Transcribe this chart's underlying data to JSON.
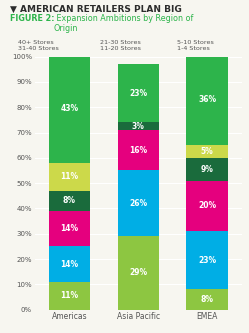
{
  "title": "▼ AMERICAN RETAILERS PLAN BIG",
  "subtitle_bold": "FIGURE 2:",
  "subtitle_rest": " Expansion Ambitions by Region of\nOrigin",
  "categories": [
    "Americas",
    "Asia Pacific",
    "EMEA"
  ],
  "legend_labels_row1": [
    "40+ Stores",
    "21-30 Stores",
    "5-10 Stores"
  ],
  "legend_labels_row2": [
    "31-40 Stores",
    "11-20 Stores",
    "1-4 Stores"
  ],
  "data": {
    "1-4 Stores": [
      11,
      29,
      8
    ],
    "5-10 Stores": [
      14,
      26,
      23
    ],
    "11-20 Stores": [
      14,
      16,
      20
    ],
    "21-30 Stores": [
      8,
      3,
      9
    ],
    "31-40 Stores": [
      11,
      0,
      5
    ],
    "40+ Stores": [
      43,
      23,
      36
    ]
  },
  "bar_colors": {
    "1-4 Stores": "#8dc641",
    "5-10 Stores": "#00aee5",
    "11-20 Stores": "#e5007e",
    "21-30 Stores": "#1a6b3c",
    "31-40 Stores": "#ccd94a",
    "40+ Stores": "#2db44b"
  },
  "legend_colors": {
    "40+ Stores": "#2db44b",
    "31-40 Stores": "#ccd94a",
    "21-30 Stores": "#1a6b3c",
    "11-20 Stores": "#e5007e",
    "5-10 Stores": "#00aee5",
    "1-4 Stores": "#8dc641"
  },
  "stack_order": [
    "1-4 Stores",
    "5-10 Stores",
    "11-20 Stores",
    "21-30 Stores",
    "31-40 Stores",
    "40+ Stores"
  ],
  "ylim": [
    0,
    100
  ],
  "yticks": [
    0,
    10,
    20,
    30,
    40,
    50,
    60,
    70,
    80,
    90,
    100
  ],
  "background_color": "#f7f6f0",
  "title_color": "#2c2c2c",
  "subtitle_color": "#2db44b",
  "text_color": "#555555",
  "grid_color": "#e0ddd5"
}
